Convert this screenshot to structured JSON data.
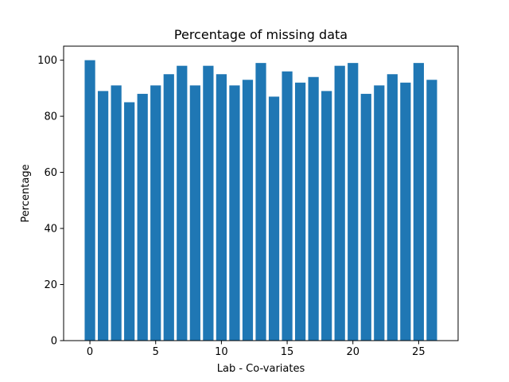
{
  "chart_data": {
    "type": "bar",
    "title": "Percentage of missing data",
    "xlabel": "Lab - Co-variates",
    "ylabel": "Percentage",
    "x": [
      0,
      1,
      2,
      3,
      4,
      5,
      6,
      7,
      8,
      9,
      10,
      11,
      12,
      13,
      14,
      15,
      16,
      17,
      18,
      19,
      20,
      21,
      22,
      23,
      24,
      25,
      26
    ],
    "values": [
      100,
      89,
      91,
      85,
      88,
      91,
      95,
      98,
      91,
      98,
      95,
      91,
      93,
      99,
      87,
      96,
      92,
      94,
      89,
      98,
      99,
      88,
      91,
      95,
      92,
      99,
      93
    ],
    "xlim": [
      -2.0,
      28.0
    ],
    "ylim": [
      0,
      105
    ],
    "xticks": [
      0,
      5,
      10,
      15,
      20,
      25
    ],
    "xtick_labels": [
      "0",
      "5",
      "10",
      "15",
      "20",
      "25"
    ],
    "yticks": [
      0,
      20,
      40,
      60,
      80,
      100
    ],
    "ytick_labels": [
      "0",
      "20",
      "40",
      "60",
      "80",
      "100"
    ],
    "bar_color": "#1f77b4",
    "grid": false,
    "legend": "none"
  }
}
